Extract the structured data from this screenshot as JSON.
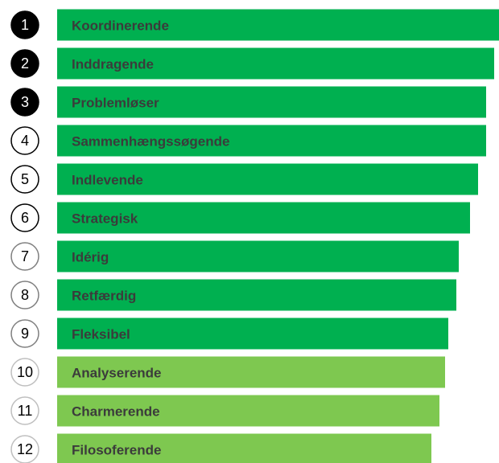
{
  "chart_data": {
    "type": "ranked-bar",
    "ranks": [
      1,
      2,
      3,
      4,
      5,
      6,
      7,
      8,
      9,
      10,
      11,
      12
    ],
    "categories": [
      "Koordinerende",
      "Inddragende",
      "Problemløser",
      "Sammenhængssøgende",
      "Indlevende",
      "Strategisk",
      "Idérig",
      "Retfærdig",
      "Fleksibel",
      "Analyserende",
      "Charmerende",
      "Filosoferende"
    ],
    "values": [
      549,
      543,
      533,
      533,
      523,
      513,
      499,
      496,
      486,
      482,
      475,
      465
    ],
    "colors": [
      "#00b050",
      "#00b050",
      "#00b050",
      "#00b050",
      "#00b050",
      "#00b050",
      "#00b050",
      "#00b050",
      "#00b050",
      "#7ec850",
      "#7ec850",
      "#7ec850"
    ],
    "rank_colors": [
      "#000000",
      "#000000",
      "#000000",
      "#000000",
      "#000000",
      "#000000",
      "#7f7f7f",
      "#7f7f7f",
      "#7f7f7f",
      "#bfbfbf",
      "#bfbfbf",
      "#bfbfbf"
    ],
    "rank_filled": [
      true,
      true,
      true,
      false,
      false,
      false,
      false,
      false,
      false,
      false,
      false,
      false
    ]
  }
}
